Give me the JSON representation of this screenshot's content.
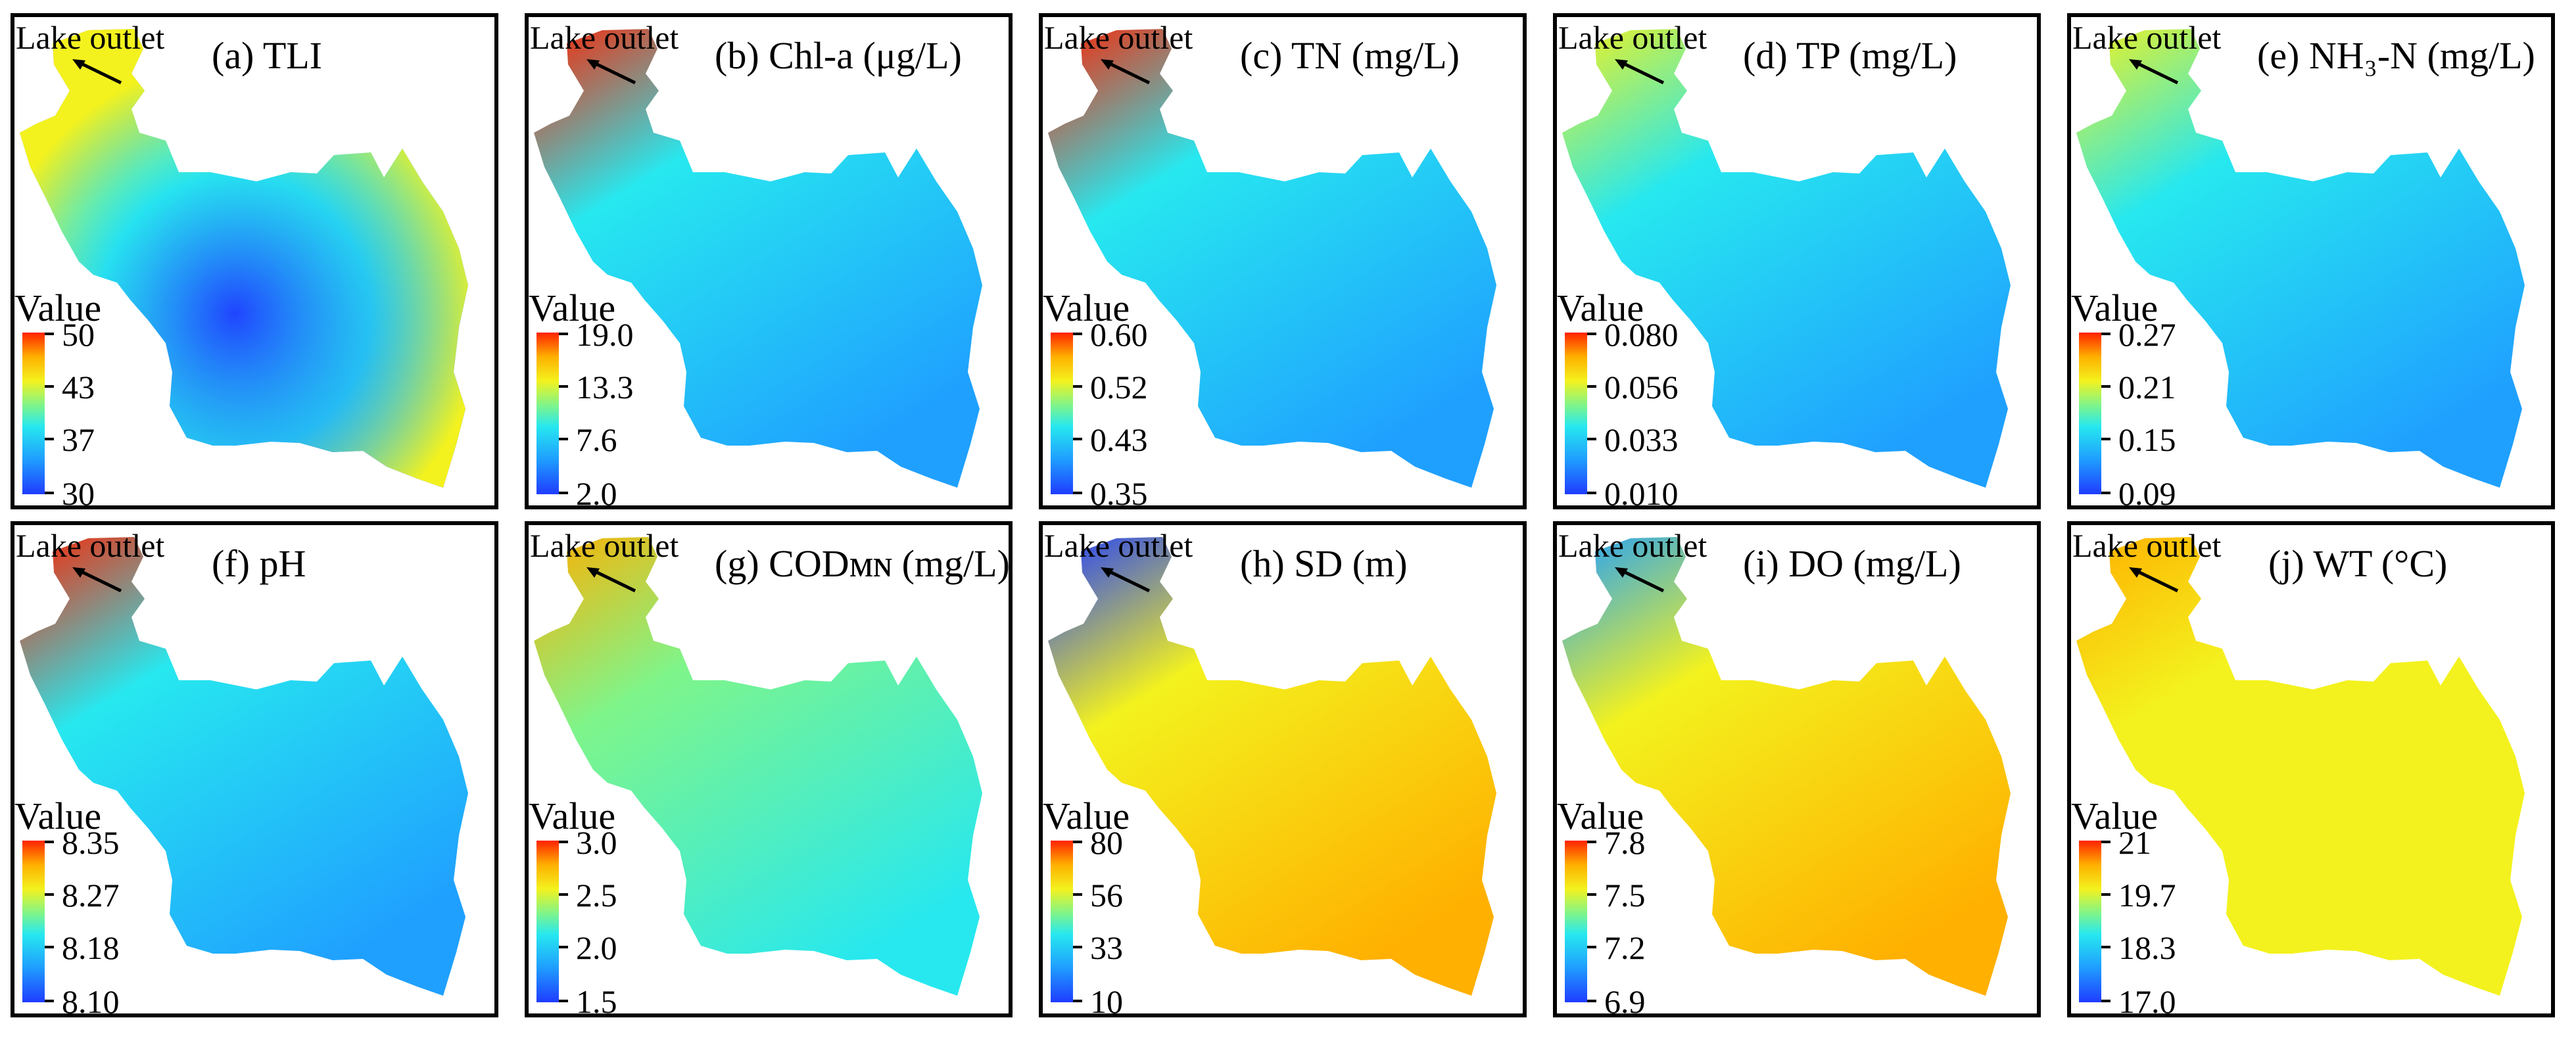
{
  "figure": {
    "outlet_label": "Lake outlet",
    "legend_title": "Value",
    "colors": {
      "low": "#1f3cff",
      "low_mid": "#1fa0ff",
      "mid": "#27e8ef",
      "mid_high": "#7ff58a",
      "high_mid": "#f3f21e",
      "high": "#ffb000",
      "max": "#ff2200"
    },
    "panels": [
      {
        "id": "a",
        "title": "(a) TLI",
        "legend_ticks": [
          "50",
          "43",
          "37",
          "30"
        ],
        "legend_range": [
          30,
          50
        ],
        "shading": "outlet_and_edges_high"
      },
      {
        "id": "b",
        "title": "(b) Chl-a (μg/L)",
        "legend_ticks": [
          "19.0",
          "13.3",
          "7.6",
          "2.0"
        ],
        "legend_range": [
          2.0,
          19.0
        ],
        "shading": "outlet_high"
      },
      {
        "id": "c",
        "title": "(c) TN (mg/L)",
        "legend_ticks": [
          "0.60",
          "0.52",
          "0.43",
          "0.35"
        ],
        "legend_range": [
          0.35,
          0.6
        ],
        "shading": "outlet_high"
      },
      {
        "id": "d",
        "title": "(d) TP (mg/L)",
        "legend_ticks": [
          "0.080",
          "0.056",
          "0.033",
          "0.010"
        ],
        "legend_range": [
          0.01,
          0.08
        ],
        "shading": "outlet_moderate"
      },
      {
        "id": "e",
        "title": "(e) NH₃-N (mg/L)",
        "legend_ticks": [
          "0.27",
          "0.21",
          "0.15",
          "0.09"
        ],
        "legend_range": [
          0.09,
          0.27
        ],
        "shading": "outlet_moderate"
      },
      {
        "id": "f",
        "title": "(f) pH",
        "legend_ticks": [
          "8.35",
          "8.27",
          "8.18",
          "8.10"
        ],
        "legend_range": [
          8.1,
          8.35
        ],
        "shading": "outlet_high"
      },
      {
        "id": "g",
        "title": "(g) CODᴍɴ (mg/L)",
        "legend_ticks": [
          "3.0",
          "2.5",
          "2.0",
          "1.5"
        ],
        "legend_range": [
          1.5,
          3.0
        ],
        "shading": "outlet_high_mid"
      },
      {
        "id": "h",
        "title": "(h) SD (m)",
        "legend_ticks": [
          "80",
          "56",
          "33",
          "10"
        ],
        "legend_range": [
          10,
          80
        ],
        "shading": "outlet_low"
      },
      {
        "id": "i",
        "title": "(i) DO (mg/L)",
        "legend_ticks": [
          "7.8",
          "7.5",
          "7.2",
          "6.9"
        ],
        "legend_range": [
          6.9,
          7.8
        ],
        "shading": "outlet_low_body_high"
      },
      {
        "id": "j",
        "title": "(j) WT (°C)",
        "legend_ticks": [
          "21",
          "19.7",
          "18.3",
          "17.0"
        ],
        "legend_range": [
          17.0,
          21.0
        ],
        "shading": "uniform_warm"
      }
    ]
  }
}
